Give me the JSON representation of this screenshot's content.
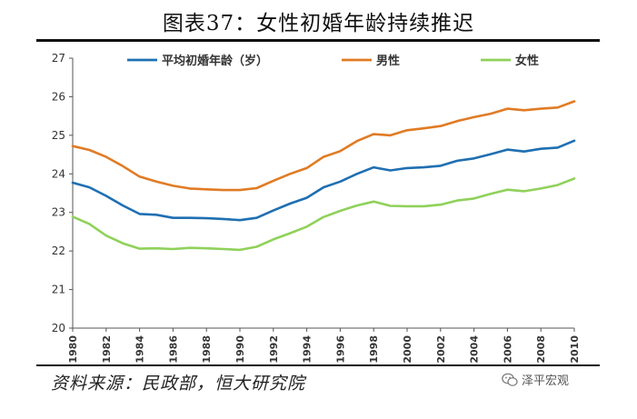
{
  "title": "图表37：女性初婚年龄持续推迟",
  "source": "资料来源：民政部，恒大研究院",
  "watermark": {
    "icon": "wechat-icon",
    "text": "泽平宏观"
  },
  "colors": {
    "average": "#1f6fb2",
    "male": "#e07b24",
    "female": "#8fd15a",
    "axis": "#555555",
    "text": "#333333"
  },
  "chart_data": {
    "type": "line",
    "title": "图表37：女性初婚年龄持续推迟",
    "xlabel": "",
    "ylabel": "",
    "ylim": [
      20,
      27
    ],
    "yticks": [
      20,
      21,
      22,
      23,
      24,
      25,
      26,
      27
    ],
    "x": [
      1980,
      1981,
      1982,
      1983,
      1984,
      1985,
      1986,
      1987,
      1988,
      1989,
      1990,
      1991,
      1992,
      1993,
      1994,
      1995,
      1996,
      1997,
      1998,
      1999,
      2000,
      2001,
      2002,
      2003,
      2004,
      2005,
      2006,
      2007,
      2008,
      2009,
      2010
    ],
    "xticks": [
      1980,
      1982,
      1984,
      1986,
      1988,
      1990,
      1992,
      1994,
      1996,
      1998,
      2000,
      2002,
      2004,
      2006,
      2008,
      2010
    ],
    "legend_position": "top",
    "series": [
      {
        "name": "平均初婚年龄（岁）",
        "color": "#1f6fb2",
        "values": [
          23.77,
          23.65,
          23.43,
          23.18,
          22.96,
          22.94,
          22.86,
          22.86,
          22.85,
          22.83,
          22.8,
          22.86,
          23.05,
          23.23,
          23.38,
          23.65,
          23.8,
          24.0,
          24.17,
          24.09,
          24.15,
          24.17,
          24.21,
          24.34,
          24.4,
          24.51,
          24.63,
          24.58,
          24.65,
          24.68,
          24.86
        ]
      },
      {
        "name": "男性",
        "color": "#e07b24",
        "values": [
          24.72,
          24.62,
          24.44,
          24.2,
          23.93,
          23.8,
          23.69,
          23.62,
          23.6,
          23.58,
          23.58,
          23.63,
          23.82,
          24.0,
          24.15,
          24.44,
          24.59,
          24.85,
          25.03,
          25.0,
          25.13,
          25.18,
          25.24,
          25.37,
          25.47,
          25.56,
          25.69,
          25.65,
          25.69,
          25.72,
          25.88
        ]
      },
      {
        "name": "女性",
        "color": "#8fd15a",
        "values": [
          22.89,
          22.7,
          22.4,
          22.2,
          22.06,
          22.07,
          22.05,
          22.08,
          22.07,
          22.05,
          22.03,
          22.11,
          22.3,
          22.46,
          22.63,
          22.88,
          23.04,
          23.18,
          23.28,
          23.17,
          23.16,
          23.16,
          23.2,
          23.31,
          23.36,
          23.48,
          23.59,
          23.55,
          23.62,
          23.71,
          23.88
        ]
      }
    ]
  }
}
